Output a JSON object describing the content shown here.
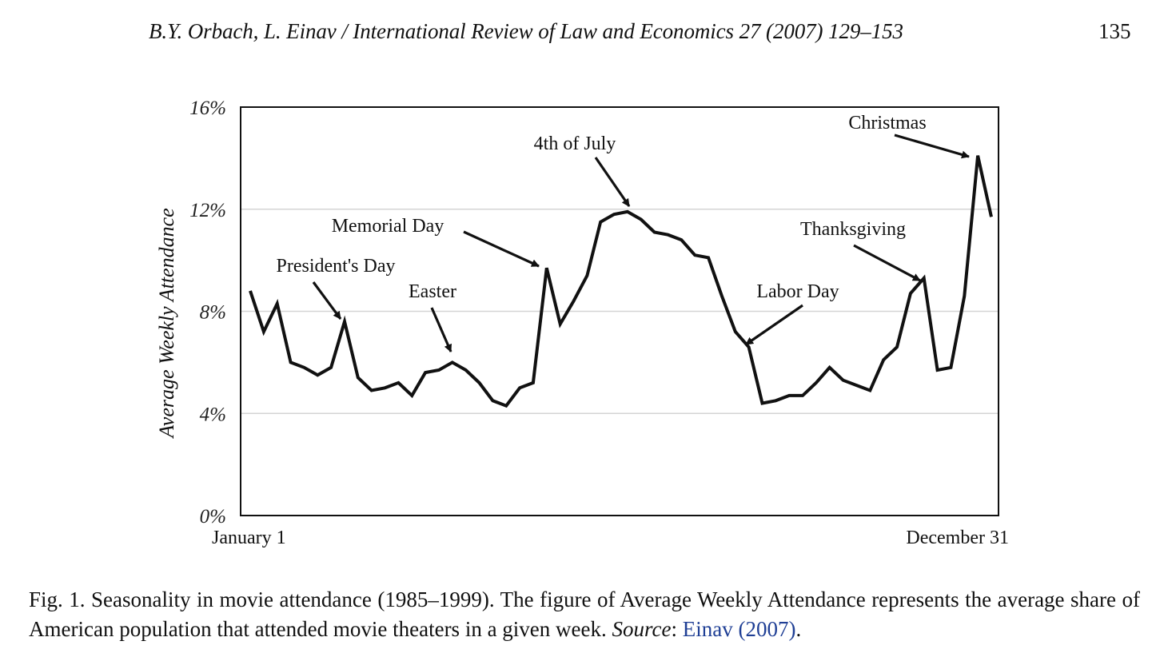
{
  "header": {
    "running_head": "B.Y. Orbach, L. Einav / International Review of Law and Economics 27 (2007) 129–153",
    "page_number": "135"
  },
  "chart_data": {
    "type": "line",
    "title": "",
    "xlabel": "",
    "ylabel": "Average Weekly Attendance",
    "ylim": [
      0,
      16
    ],
    "yticks": [
      0,
      4,
      8,
      12,
      16
    ],
    "ytick_labels": [
      "0%",
      "4%",
      "8%",
      "12%",
      "16%"
    ],
    "grid": true,
    "x_start_label": "January 1",
    "x_end_label": "December 31",
    "series": [
      {
        "name": "",
        "values": [
          8.8,
          7.2,
          8.3,
          6.0,
          5.8,
          5.5,
          5.8,
          7.6,
          5.4,
          4.9,
          5.0,
          5.2,
          4.7,
          5.6,
          5.7,
          6.0,
          5.7,
          5.2,
          4.5,
          4.3,
          5.0,
          5.2,
          9.7,
          7.5,
          8.4,
          9.4,
          11.5,
          11.8,
          11.9,
          11.6,
          11.1,
          11.0,
          10.8,
          10.2,
          10.1,
          8.6,
          7.2,
          6.6,
          4.4,
          4.5,
          4.7,
          4.7,
          5.2,
          5.8,
          5.3,
          5.1,
          4.9,
          6.1,
          6.6,
          8.7,
          9.3,
          5.7,
          5.8,
          8.6,
          14.1,
          11.7
        ]
      }
    ],
    "annotations": [
      {
        "text": "President's Day",
        "week": 8
      },
      {
        "text": "Easter",
        "week": 16
      },
      {
        "text": "Memorial Day",
        "week": 23
      },
      {
        "text": "4th of July",
        "week": 29
      },
      {
        "text": "Labor Day",
        "week": 38
      },
      {
        "text": "Thanksgiving",
        "week": 51
      },
      {
        "text": "Christmas",
        "week": 55
      }
    ],
    "colors": {
      "line": "#111111",
      "grid": "#d4d4d4",
      "axes": "#111111"
    }
  },
  "caption": {
    "fig_label": "Fig. 1.",
    "text_part1": " Seasonality in movie attendance (1985–1999). The figure of Average Weekly Attendance represents the average share of American population that attended movie theaters in a given week. ",
    "source_label": "Source",
    "source_sep": ": ",
    "citation": "Einav (2007)",
    "end": "."
  }
}
